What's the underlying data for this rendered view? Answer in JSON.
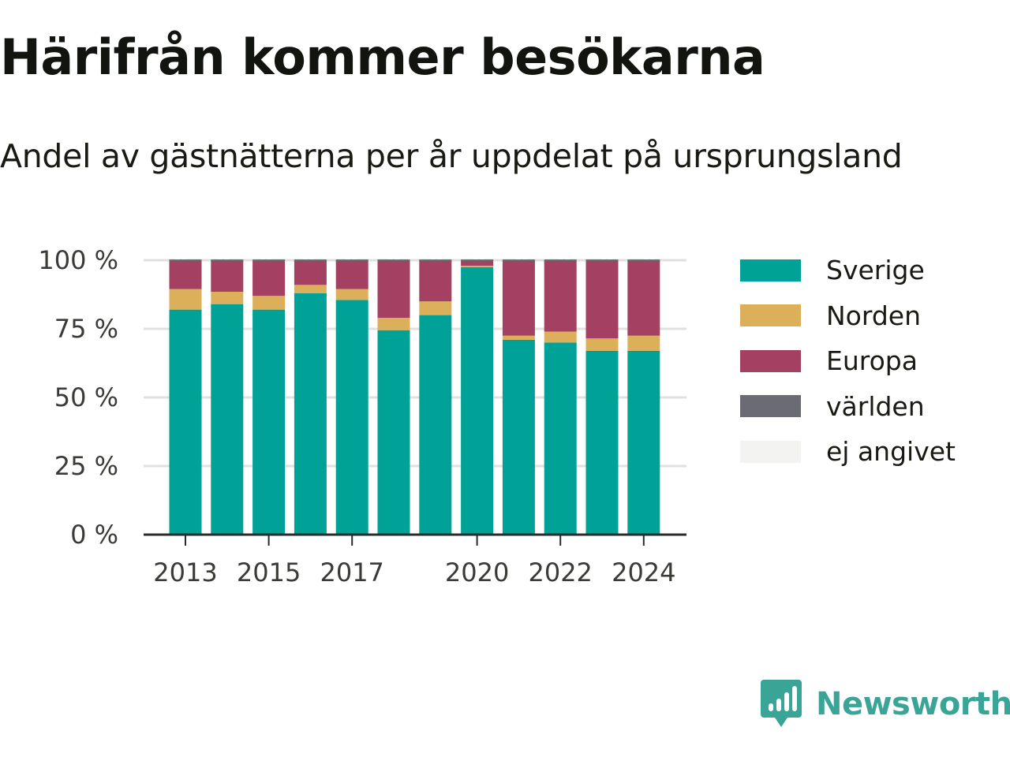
{
  "title": "Härifrån kommer besökarna",
  "subtitle": "Andel av gästnätterna per år uppdelat på ursprungsland",
  "brand": {
    "name": "Newsworthy",
    "icon": "newsworthy-logo-icon",
    "color": "#3aa597"
  },
  "colors": {
    "Sverige": "#00a298",
    "Norden": "#dcaf5a",
    "Europa": "#a44061",
    "världen": "#6b6b73",
    "ej angivet": "#f3f3f1",
    "grid": "#e0e0dc",
    "axis": "#2a2a2a"
  },
  "chart_data": {
    "type": "bar",
    "stacked": true,
    "categories": [
      2013,
      2014,
      2015,
      2016,
      2017,
      2018,
      2019,
      2020,
      2021,
      2022,
      2023,
      2024
    ],
    "x_tick_labels": [
      "2013",
      "2015",
      "2017",
      "2020",
      "2022",
      "2024"
    ],
    "y_ticks": [
      0,
      25,
      50,
      75,
      100
    ],
    "y_tick_labels": [
      "0 %",
      "25 %",
      "50 %",
      "75 %",
      "100 %"
    ],
    "ylim": [
      0,
      100
    ],
    "grid": true,
    "legend_position": "right",
    "series": [
      {
        "name": "Sverige",
        "values": [
          82,
          84,
          82,
          88,
          85.5,
          74.5,
          80,
          97.5,
          71,
          70,
          67,
          67
        ]
      },
      {
        "name": "Norden",
        "values": [
          7.5,
          4.5,
          5,
          3,
          4,
          4.5,
          5,
          0.5,
          1.5,
          4,
          4.5,
          5.5
        ]
      },
      {
        "name": "Europa",
        "values": [
          10.5,
          11.5,
          13,
          9,
          10.5,
          21,
          15,
          2,
          27.5,
          26,
          28.5,
          27.5
        ]
      },
      {
        "name": "världen",
        "values": [
          0,
          0,
          0,
          0,
          0,
          0,
          0,
          0,
          0,
          0,
          0,
          0
        ]
      },
      {
        "name": "ej angivet",
        "values": [
          0,
          0,
          0,
          0,
          0,
          0,
          0,
          0,
          0,
          0,
          0,
          0
        ]
      }
    ]
  }
}
